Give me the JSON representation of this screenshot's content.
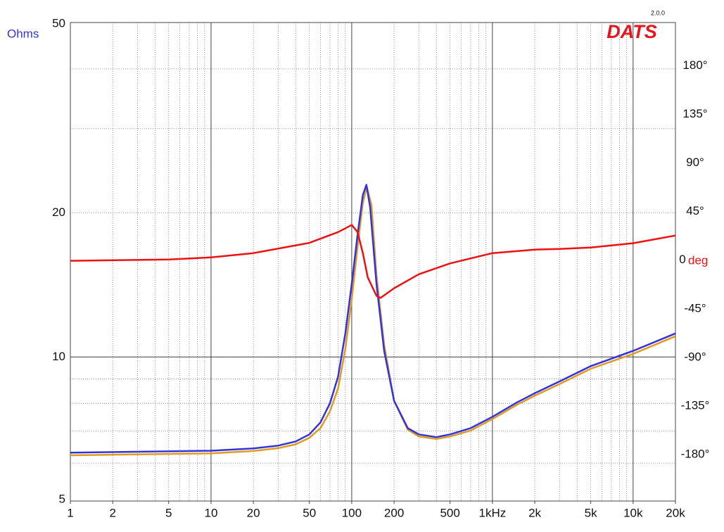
{
  "chart_data": {
    "type": "line",
    "y_label": "Ohms",
    "y2_label": "deg",
    "logo": "DATS",
    "version": "2.0.0",
    "xscale": "log",
    "yscale": "log",
    "xlim": [
      1,
      20000
    ],
    "ylim": [
      5,
      50
    ],
    "y2lim": [
      -223,
      220
    ],
    "xticks": [
      1,
      2,
      5,
      10,
      20,
      50,
      100,
      200,
      500,
      {
        "value": 1000,
        "label": "1kHz"
      },
      {
        "value": 2000,
        "label": "2k"
      },
      {
        "value": 5000,
        "label": "5k"
      },
      {
        "value": 10000,
        "label": "10k"
      },
      {
        "value": 20000,
        "label": "20k"
      }
    ],
    "yticks": [
      5,
      10,
      20,
      50
    ],
    "y2ticks": [
      {
        "value": 180,
        "label": "180°"
      },
      {
        "value": 135,
        "label": "135°"
      },
      {
        "value": 90,
        "label": "90°"
      },
      {
        "value": 45,
        "label": "45°"
      },
      0,
      {
        "value": -45,
        "label": "-45°"
      },
      {
        "value": -90,
        "label": "-90°"
      },
      {
        "value": -135,
        "label": "-135°"
      },
      {
        "value": -180,
        "label": "-180°"
      }
    ],
    "xgrid_major": [
      10,
      100,
      1000,
      10000
    ],
    "xgrid_minor": [
      2,
      3,
      4,
      5,
      6,
      7,
      8,
      9,
      20,
      30,
      40,
      50,
      60,
      70,
      80,
      90,
      200,
      300,
      400,
      500,
      600,
      700,
      800,
      900,
      2000,
      3000,
      4000,
      5000,
      6000,
      7000,
      8000,
      9000
    ],
    "ygrid_major": [
      10
    ],
    "ygrid_minor": [
      6,
      7,
      8,
      9,
      30,
      40
    ],
    "series": [
      {
        "color": "#e09a20",
        "x": [
          1,
          10,
          20,
          30,
          40,
          50,
          60,
          70,
          80,
          90,
          100,
          110,
          120,
          128,
          138,
          150,
          170,
          200,
          250,
          300,
          400,
          500,
          700,
          1000,
          1500,
          2000,
          3000,
          5000,
          10000,
          20000
        ],
        "values": [
          6.23,
          6.29,
          6.36,
          6.45,
          6.57,
          6.78,
          7.1,
          7.7,
          8.6,
          10.4,
          13.2,
          17.0,
          21.0,
          22.7,
          20.8,
          14.8,
          10.6,
          8.1,
          7.05,
          6.82,
          6.74,
          6.82,
          7.02,
          7.42,
          7.95,
          8.3,
          8.78,
          9.45,
          10.15,
          11.05
        ]
      },
      {
        "color": "#3333dd",
        "x": [
          1,
          10,
          20,
          30,
          40,
          50,
          60,
          70,
          80,
          90,
          100,
          110,
          120,
          127,
          135,
          150,
          170,
          200,
          250,
          300,
          400,
          500,
          700,
          1000,
          1500,
          2000,
          3000,
          5000,
          10000,
          20000
        ],
        "values": [
          6.31,
          6.37,
          6.44,
          6.53,
          6.66,
          6.89,
          7.3,
          8.0,
          9.1,
          11.2,
          14.2,
          18.0,
          21.8,
          22.9,
          20.6,
          14.2,
          10.3,
          8.1,
          7.1,
          6.89,
          6.8,
          6.89,
          7.1,
          7.5,
          8.04,
          8.4,
          8.89,
          9.57,
          10.3,
          11.2
        ]
      },
      {
        "color": "#ee1111",
        "axis": "y2",
        "x": [
          1,
          5,
          10,
          20,
          50,
          80,
          100,
          110,
          120,
          130,
          150,
          160,
          200,
          300,
          500,
          1000,
          2000,
          3000,
          5000,
          10000,
          20000
        ],
        "values": [
          -0.6,
          0.6,
          2.6,
          6.5,
          16,
          26,
          32.6,
          26,
          6.5,
          -16,
          -33,
          -35,
          -26,
          -13,
          -3,
          6.5,
          9.8,
          10.4,
          11.7,
          15.7,
          22.8
        ]
      }
    ]
  }
}
